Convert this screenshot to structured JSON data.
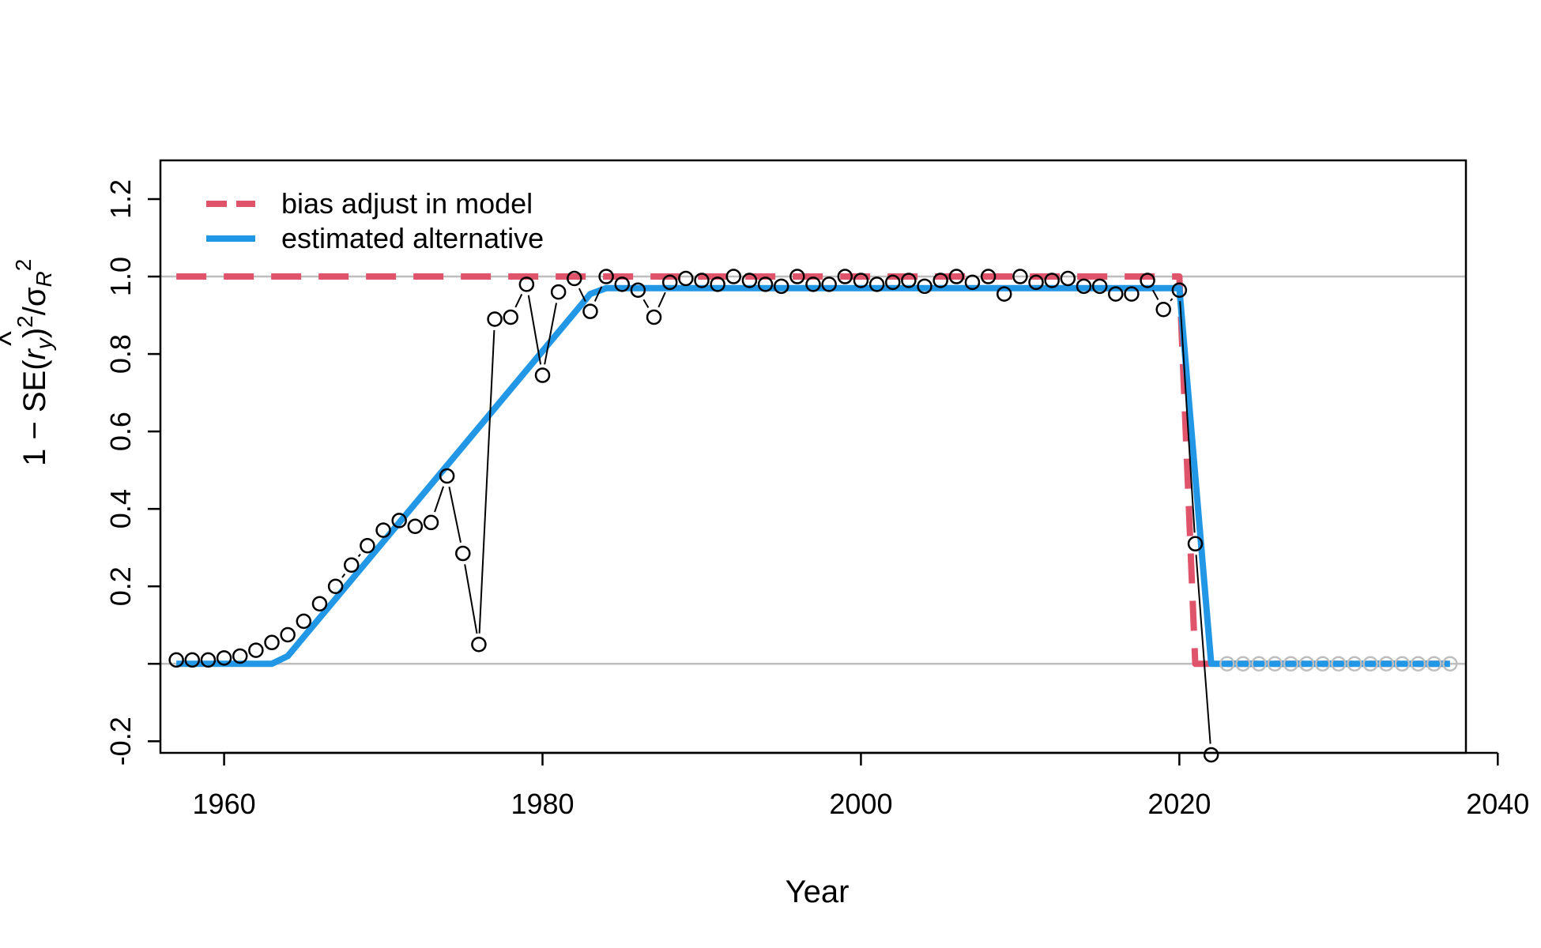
{
  "chart_data": {
    "type": "line",
    "title": "",
    "xlabel": "Year",
    "ylabel": "1 − SE(r̂y)²/σR²",
    "ylabel_parts": {
      "prefix": "1 − SE(",
      "hat": "^",
      "r": "r",
      "r_sub": "y",
      "close": ")",
      "sq1": "2",
      "slash": "/",
      "sigma": "σ",
      "sigma_sub": "R",
      "sq2": "2"
    },
    "xlim": [
      1956,
      2038
    ],
    "ylim": [
      -0.23,
      1.3
    ],
    "x_ticks": [
      1960,
      1980,
      2000,
      2020,
      2040
    ],
    "x_tick_labels": [
      "1960",
      "1980",
      "2000",
      "2020",
      "2040"
    ],
    "y_ticks": [
      -0.2,
      0.0,
      0.2,
      0.4,
      0.6,
      0.8,
      1.0,
      1.2
    ],
    "y_tick_labels": [
      "-0.2",
      "",
      "0.2",
      "0.4",
      "0.6",
      "0.8",
      "1.0",
      "1.2"
    ],
    "reference_lines": [
      0,
      1
    ],
    "legend": {
      "position": "top-left",
      "entries": [
        {
          "label": "bias adjust in model",
          "color": "#DF536B",
          "style": "dashed"
        },
        {
          "label": "estimated alternative",
          "color": "#2297E6",
          "style": "solid"
        }
      ]
    },
    "series": [
      {
        "name": "bias adjust in model",
        "color": "#DF536B",
        "style": "dashed",
        "x": [
          1957,
          2020,
          2021,
          2037
        ],
        "y": [
          1.0,
          1.0,
          0.0,
          0.0
        ]
      },
      {
        "name": "estimated alternative",
        "color": "#2297E6",
        "style": "solid",
        "x": [
          1957,
          1963,
          1964,
          1983,
          1984,
          2020,
          2022,
          2037
        ],
        "y": [
          0.0,
          0.0,
          0.02,
          0.955,
          0.97,
          0.97,
          0.0,
          0.0
        ]
      }
    ],
    "points": {
      "x": [
        1957,
        1958,
        1959,
        1960,
        1961,
        1962,
        1963,
        1964,
        1965,
        1966,
        1967,
        1968,
        1969,
        1970,
        1971,
        1972,
        1973,
        1974,
        1975,
        1976,
        1977,
        1978,
        1979,
        1980,
        1981,
        1982,
        1983,
        1984,
        1985,
        1986,
        1987,
        1988,
        1989,
        1990,
        1991,
        1992,
        1993,
        1994,
        1995,
        1996,
        1997,
        1998,
        1999,
        2000,
        2001,
        2002,
        2003,
        2004,
        2005,
        2006,
        2007,
        2008,
        2009,
        2010,
        2011,
        2012,
        2013,
        2014,
        2015,
        2016,
        2017,
        2018,
        2019,
        2020,
        2021,
        2022
      ],
      "y": [
        0.01,
        0.01,
        0.01,
        0.015,
        0.02,
        0.035,
        0.055,
        0.075,
        0.11,
        0.155,
        0.2,
        0.255,
        0.305,
        0.345,
        0.37,
        0.355,
        0.365,
        0.485,
        0.285,
        0.05,
        0.89,
        0.895,
        0.98,
        0.745,
        0.96,
        0.995,
        0.91,
        1.0,
        0.98,
        0.965,
        0.895,
        0.985,
        0.995,
        0.99,
        0.98,
        1.0,
        0.99,
        0.98,
        0.975,
        1.0,
        0.98,
        0.98,
        1.0,
        0.99,
        0.98,
        0.985,
        0.99,
        0.975,
        0.99,
        1.0,
        0.985,
        1.0,
        0.955,
        1.0,
        0.985,
        0.99,
        0.995,
        0.975,
        0.975,
        0.955,
        0.955,
        0.99,
        0.915,
        0.965,
        0.31,
        -0.235
      ]
    },
    "forecast_points": {
      "x": [
        2023,
        2024,
        2025,
        2026,
        2027,
        2028,
        2029,
        2030,
        2031,
        2032,
        2033,
        2034,
        2035,
        2036,
        2037
      ],
      "y": [
        0,
        0,
        0,
        0,
        0,
        0,
        0,
        0,
        0,
        0,
        0,
        0,
        0,
        0,
        0
      ]
    }
  }
}
